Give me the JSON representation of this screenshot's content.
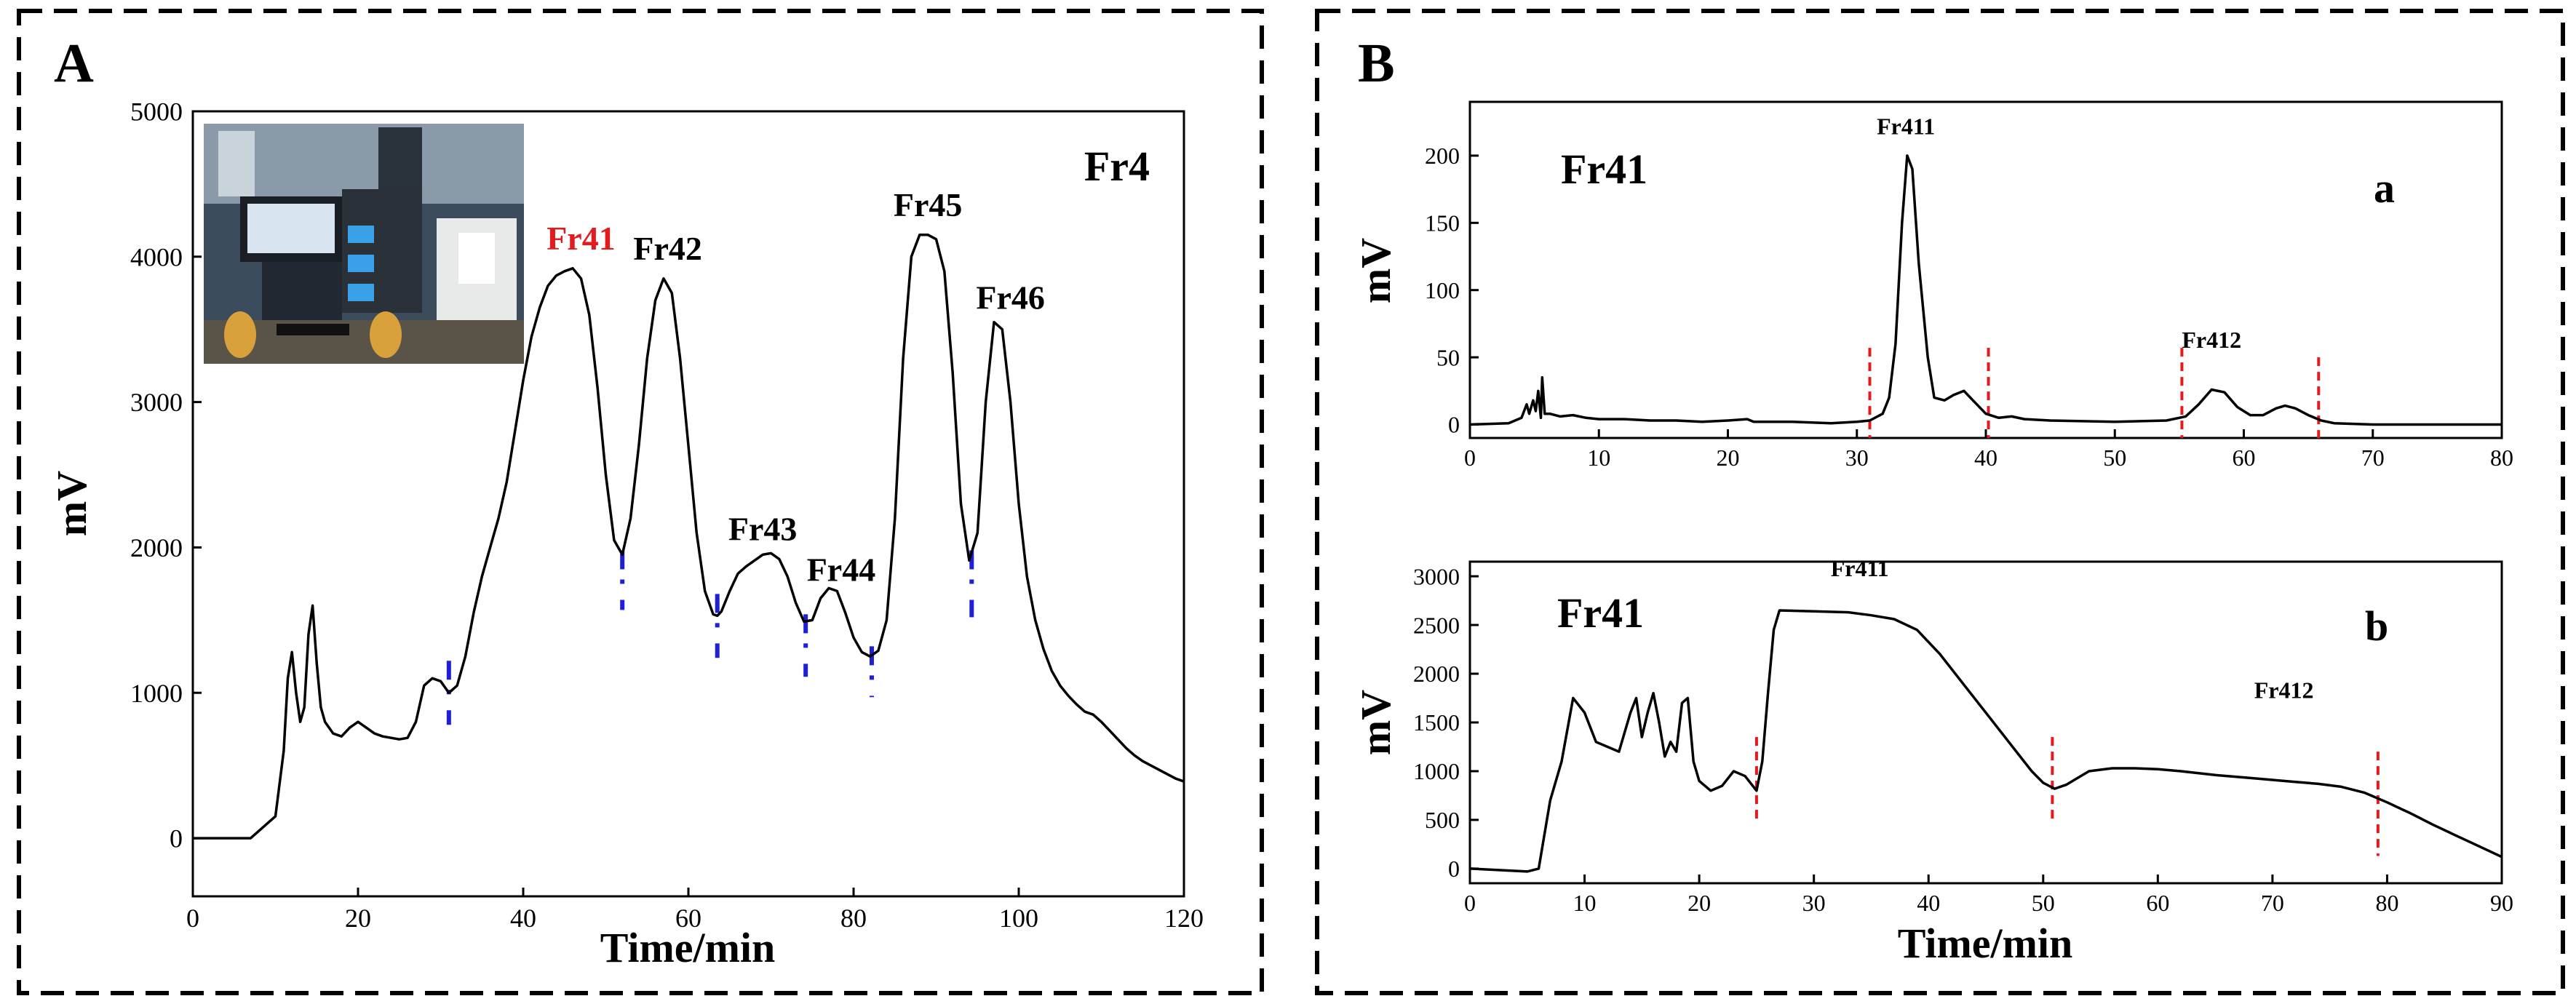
{
  "colors": {
    "ink": "#000000",
    "red": "#e41a1c",
    "blue": "#1f1fd6",
    "photo_bg": "#3a4a5a"
  },
  "panels": {
    "A": {
      "label": "A"
    },
    "B": {
      "label": "B"
    }
  },
  "chart_data": [
    {
      "id": "A",
      "type": "line",
      "title": "Fr4",
      "xlabel": "Time/min",
      "ylabel": "mV",
      "xlim": [
        0,
        120
      ],
      "ylim": [
        -400,
        5000
      ],
      "xticks": [
        0,
        20,
        40,
        60,
        80,
        100,
        120
      ],
      "yticks": [
        0,
        1000,
        2000,
        3000,
        4000,
        5000
      ],
      "series": [
        {
          "name": "Fr4",
          "x": [
            0,
            7,
            8,
            9,
            10,
            11,
            11.5,
            12,
            12.5,
            13,
            13.5,
            14,
            14.5,
            15,
            15.5,
            16,
            17,
            18,
            19,
            20,
            21,
            22,
            23,
            24,
            25,
            26,
            27,
            28,
            29,
            30,
            31,
            32,
            33,
            34,
            35,
            36,
            37,
            38,
            39,
            40,
            41,
            42,
            43,
            44,
            45,
            46,
            47,
            48,
            49,
            50,
            51,
            52,
            53,
            54,
            55,
            56,
            57,
            58,
            59,
            60,
            61,
            62,
            63,
            63.5,
            64,
            65,
            66,
            67,
            68,
            69,
            70,
            71,
            72,
            73,
            74,
            75,
            76,
            77,
            78,
            79,
            80,
            81,
            82,
            83,
            84,
            85,
            86,
            87,
            88,
            89,
            90,
            91,
            92,
            93,
            94,
            95,
            96,
            97,
            98,
            99,
            100,
            101,
            102,
            103,
            104,
            105,
            106,
            107,
            108,
            109,
            110,
            111,
            112,
            113,
            114,
            115,
            116,
            117,
            118,
            119,
            120
          ],
          "y": [
            0,
            0,
            50,
            100,
            150,
            600,
            1100,
            1280,
            1000,
            800,
            900,
            1400,
            1600,
            1200,
            900,
            800,
            720,
            700,
            760,
            800,
            760,
            720,
            700,
            690,
            680,
            690,
            800,
            1050,
            1100,
            1080,
            1000,
            1050,
            1250,
            1550,
            1800,
            2000,
            2200,
            2450,
            2800,
            3150,
            3450,
            3650,
            3800,
            3870,
            3900,
            3920,
            3850,
            3600,
            3100,
            2500,
            2050,
            1950,
            2200,
            2700,
            3300,
            3700,
            3850,
            3750,
            3300,
            2700,
            2100,
            1700,
            1540,
            1530,
            1560,
            1700,
            1820,
            1870,
            1910,
            1950,
            1960,
            1920,
            1800,
            1620,
            1490,
            1500,
            1650,
            1720,
            1700,
            1550,
            1380,
            1280,
            1250,
            1290,
            1500,
            2200,
            3300,
            4000,
            4150,
            4150,
            4120,
            3900,
            3200,
            2300,
            1910,
            2100,
            3000,
            3550,
            3500,
            3000,
            2300,
            1800,
            1500,
            1300,
            1150,
            1050,
            980,
            920,
            870,
            850,
            800,
            740,
            680,
            620,
            570,
            530,
            500,
            470,
            440,
            410,
            390
          ]
        }
      ],
      "annotations": [
        {
          "text": "Fr41",
          "x": 47,
          "y": 4050,
          "color": "red"
        },
        {
          "text": "Fr42",
          "x": 57.5,
          "y": 3980
        },
        {
          "text": "Fr43",
          "x": 69,
          "y": 2050
        },
        {
          "text": "Fr44",
          "x": 78.5,
          "y": 1770
        },
        {
          "text": "Fr45",
          "x": 89,
          "y": 4280
        },
        {
          "text": "Fr46",
          "x": 99,
          "y": 3640
        }
      ],
      "cut_markers": [
        {
          "x": 31,
          "y_top": 1220,
          "y_bottom": 780
        },
        {
          "x": 52,
          "y_top": 1980,
          "y_bottom": 1570
        },
        {
          "x": 63.5,
          "y_top": 1680,
          "y_bottom": 1240
        },
        {
          "x": 74.2,
          "y_top": 1540,
          "y_bottom": 1110
        },
        {
          "x": 82.2,
          "y_top": 1320,
          "y_bottom": 970
        },
        {
          "x": 94.3,
          "y_top": 1980,
          "y_bottom": 1520
        }
      ]
    },
    {
      "id": "B-a",
      "type": "line",
      "title": "Fr41",
      "subtitle": "a",
      "xlabel": "",
      "ylabel": "mV",
      "xlim": [
        0,
        80
      ],
      "ylim": [
        -10,
        240
      ],
      "xticks": [
        0,
        10,
        20,
        30,
        40,
        50,
        60,
        70,
        80
      ],
      "yticks": [
        0,
        50,
        100,
        150,
        200
      ],
      "series": [
        {
          "name": "Fr41-a",
          "x": [
            0,
            3,
            4,
            4.4,
            4.6,
            4.9,
            5.1,
            5.3,
            5.5,
            5.6,
            5.8,
            6.2,
            7,
            8,
            9,
            10,
            12,
            14,
            16,
            18,
            20,
            21.5,
            22,
            23,
            25,
            28,
            30,
            31,
            32,
            32.5,
            33,
            33.5,
            33.9,
            34.3,
            34.8,
            35.5,
            36,
            36.8,
            37.5,
            38.3,
            39,
            40,
            41,
            42,
            43,
            45,
            50,
            54,
            55.5,
            56.5,
            57.5,
            58.5,
            59.5,
            60.5,
            61.5,
            62.5,
            63.2,
            64,
            65,
            66,
            67,
            70,
            75,
            80
          ],
          "y": [
            0,
            1,
            5,
            15,
            8,
            18,
            10,
            25,
            5,
            35,
            8,
            8,
            6,
            7,
            5,
            4,
            4,
            3,
            3,
            2,
            3,
            4,
            2,
            2,
            2,
            1,
            2,
            3,
            8,
            20,
            60,
            150,
            200,
            190,
            120,
            50,
            20,
            18,
            22,
            25,
            18,
            8,
            5,
            6,
            4,
            3,
            2,
            3,
            6,
            15,
            26,
            24,
            13,
            7,
            7,
            12,
            14,
            12,
            7,
            3,
            1,
            0,
            0,
            0
          ]
        }
      ],
      "annotations": [
        {
          "text": "Fr411",
          "x": 33.8,
          "y": 216
        },
        {
          "text": "Fr412",
          "x": 57.5,
          "y": 57
        }
      ],
      "cut_markers": [
        {
          "x": 31,
          "y_top": 57,
          "y_bottom": -10
        },
        {
          "x": 40.2,
          "y_top": 57,
          "y_bottom": -10
        },
        {
          "x": 55.2,
          "y_top": 57,
          "y_bottom": -10
        },
        {
          "x": 65.8,
          "y_top": 50,
          "y_bottom": -10
        }
      ]
    },
    {
      "id": "B-b",
      "type": "line",
      "title": "Fr41",
      "subtitle": "b",
      "xlabel": "Time/min",
      "ylabel": "mV",
      "xlim": [
        0,
        90
      ],
      "ylim": [
        -150,
        3150
      ],
      "xticks": [
        0,
        10,
        20,
        30,
        40,
        50,
        60,
        70,
        80,
        90
      ],
      "yticks": [
        0,
        500,
        1000,
        1500,
        2000,
        2500,
        3000
      ],
      "series": [
        {
          "name": "Fr41-b",
          "x": [
            0,
            5,
            6,
            7,
            8,
            9,
            10,
            11,
            12,
            13,
            14,
            14.5,
            15,
            15.5,
            16,
            16.5,
            17,
            17.5,
            18,
            18.5,
            19,
            19.5,
            20,
            21,
            22,
            23,
            24,
            25,
            25.5,
            26,
            26.5,
            27,
            30,
            33,
            35,
            37,
            39,
            41,
            43,
            45,
            47,
            49,
            50,
            51,
            52,
            54,
            56,
            58,
            60,
            62,
            65,
            68,
            70,
            72,
            74,
            76,
            78,
            80,
            82,
            84,
            86,
            88,
            90
          ],
          "y": [
            0,
            -30,
            0,
            700,
            1100,
            1750,
            1600,
            1300,
            1250,
            1200,
            1600,
            1750,
            1350,
            1600,
            1800,
            1500,
            1150,
            1300,
            1200,
            1700,
            1750,
            1100,
            900,
            800,
            850,
            1000,
            950,
            800,
            1100,
            1800,
            2450,
            2650,
            2640,
            2630,
            2600,
            2560,
            2450,
            2200,
            1900,
            1600,
            1300,
            1000,
            880,
            820,
            860,
            1000,
            1030,
            1030,
            1020,
            1000,
            960,
            930,
            910,
            890,
            870,
            840,
            780,
            680,
            570,
            450,
            340,
            230,
            120
          ]
        }
      ],
      "annotations": [
        {
          "text": "Fr411",
          "x": 34,
          "y": 3000
        },
        {
          "text": "Fr412",
          "x": 71,
          "y": 1750
        }
      ],
      "cut_markers": [
        {
          "x": 25,
          "y_top": 1350,
          "y_bottom": 500
        },
        {
          "x": 50.8,
          "y_top": 1350,
          "y_bottom": 500
        },
        {
          "x": 79.2,
          "y_top": 1200,
          "y_bottom": 130
        }
      ]
    }
  ]
}
